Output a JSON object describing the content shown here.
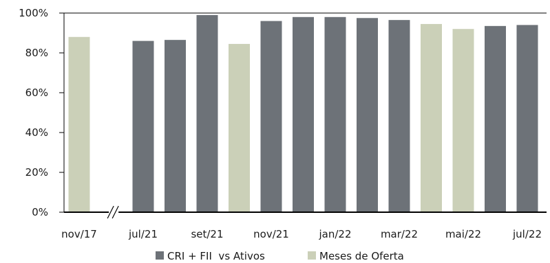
{
  "chart_data": {
    "type": "bar",
    "title": "",
    "xlabel": "",
    "ylabel": "",
    "ylim": [
      0,
      100
    ],
    "y_ticks": [
      "0%",
      "20%",
      "40%",
      "60%",
      "80%",
      "100%"
    ],
    "y_tick_values": [
      0,
      20,
      40,
      60,
      80,
      100
    ],
    "grid": false,
    "axis_break": "//",
    "bars": [
      {
        "slot": 0,
        "value": 88,
        "series": "Meses de Oferta"
      },
      {
        "slot": 2,
        "value": 86,
        "series": "CRI + FII vs Ativos"
      },
      {
        "slot": 3,
        "value": 86.5,
        "series": "CRI + FII vs Ativos"
      },
      {
        "slot": 4,
        "value": 99,
        "series": "CRI + FII vs Ativos"
      },
      {
        "slot": 5,
        "value": 84.5,
        "series": "Meses de Oferta"
      },
      {
        "slot": 6,
        "value": 96,
        "series": "CRI + FII vs Ativos"
      },
      {
        "slot": 7,
        "value": 98,
        "series": "CRI + FII vs Ativos"
      },
      {
        "slot": 8,
        "value": 98,
        "series": "CRI + FII vs Ativos"
      },
      {
        "slot": 9,
        "value": 97.5,
        "series": "CRI + FII vs Ativos"
      },
      {
        "slot": 10,
        "value": 96.5,
        "series": "CRI + FII vs Ativos"
      },
      {
        "slot": 11,
        "value": 94.5,
        "series": "Meses de Oferta"
      },
      {
        "slot": 12,
        "value": 92,
        "series": "Meses de Oferta"
      },
      {
        "slot": 13,
        "value": 93.5,
        "series": "CRI + FII vs Ativos"
      },
      {
        "slot": 14,
        "value": 94,
        "series": "CRI + FII vs Ativos"
      }
    ],
    "x_tick_labels": [
      {
        "slot": 0,
        "label": "nov/17"
      },
      {
        "slot": 2,
        "label": "jul/21"
      },
      {
        "slot": 4,
        "label": "set/21"
      },
      {
        "slot": 6,
        "label": "nov/21"
      },
      {
        "slot": 8,
        "label": "jan/22"
      },
      {
        "slot": 10,
        "label": "mar/22"
      },
      {
        "slot": 12,
        "label": "mai/22"
      },
      {
        "slot": 14,
        "label": "jul/22"
      }
    ],
    "series": [
      {
        "name": "CRI + FII  vs Ativos",
        "key": "CRI + FII vs Ativos",
        "color": "#6d7278"
      },
      {
        "name": "Meses de Oferta",
        "key": "Meses de Oferta",
        "color": "#cbd0b8"
      }
    ],
    "legend_placement": "bottom"
  }
}
